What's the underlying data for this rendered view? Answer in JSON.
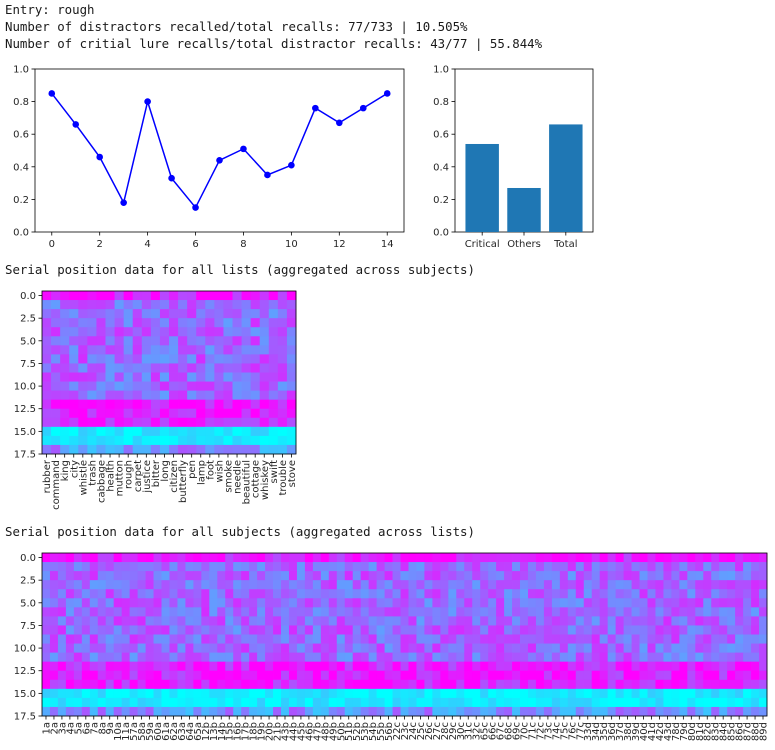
{
  "output": {
    "entry_line": "Entry: rough",
    "distractor_line": "Number of distractors recalled/total recalls: 77/733 | 10.505%",
    "lure_line": "Number of critial lure recalls/total distractor recalls: 43/77 | 55.844%",
    "lists_heading": "Serial position data for all lists (aggregated across subjects)",
    "subjects_heading": "Serial position data for all subjects (aggregated across lists)"
  },
  "colors": {
    "line": "#0000ff",
    "bar": "#1f77b4",
    "cmap_low": "#00ffff",
    "cmap_high": "#ff00ff"
  },
  "chart_data": [
    {
      "type": "line",
      "x": [
        0,
        1,
        2,
        3,
        4,
        5,
        6,
        7,
        8,
        9,
        10,
        11,
        12,
        13,
        14
      ],
      "y": [
        0.85,
        0.66,
        0.46,
        0.18,
        0.8,
        0.33,
        0.15,
        0.44,
        0.51,
        0.35,
        0.41,
        0.76,
        0.67,
        0.76,
        0.85
      ],
      "xlim": [
        -0.7,
        14.7
      ],
      "ylim": [
        0,
        1.0
      ],
      "xticks": [
        0,
        2,
        4,
        6,
        8,
        10,
        12,
        14
      ],
      "yticks": [
        0.0,
        0.2,
        0.4,
        0.6,
        0.8,
        1.0
      ],
      "marker": "circle"
    },
    {
      "type": "bar",
      "categories": [
        "Critical",
        "Others",
        "Total"
      ],
      "values": [
        0.54,
        0.27,
        0.66
      ],
      "ylim": [
        0,
        1.0
      ],
      "yticks": [
        0.0,
        0.2,
        0.4,
        0.6,
        0.8,
        1.0
      ]
    },
    {
      "type": "heatmap",
      "rows": 18,
      "yticks": [
        "0.0",
        "2.5",
        "5.0",
        "7.5",
        "10.0",
        "12.5",
        "15.0",
        "17.5"
      ],
      "columns": [
        "rubber",
        "command",
        "king",
        "city",
        "whistle",
        "trash",
        "cabbage",
        "health",
        "mutton",
        "rough",
        "carpet",
        "justice",
        "bitter",
        "long",
        "citizen",
        "butterfly",
        "pen",
        "lamp",
        "foot",
        "wish",
        "smoke",
        "needle",
        "beautiful",
        "cottage",
        "whiskey",
        "swift",
        "trouble",
        "stove"
      ],
      "colormap": "cool"
    },
    {
      "type": "heatmap",
      "rows": 18,
      "yticks": [
        "0.0",
        "2.5",
        "5.0",
        "7.5",
        "10.0",
        "12.5",
        "15.0",
        "17.5"
      ],
      "columns": [
        "1a",
        "2a",
        "3a",
        "4a",
        "5a",
        "6a",
        "7a",
        "8a",
        "9a",
        "10a",
        "11a",
        "57a",
        "58a",
        "59a",
        "60a",
        "61a",
        "62a",
        "63a",
        "64a",
        "65a",
        "12b",
        "13b",
        "14b",
        "15b",
        "16b",
        "17b",
        "18b",
        "19b",
        "20b",
        "21b",
        "43b",
        "44b",
        "45b",
        "46b",
        "47b",
        "48b",
        "49b",
        "50b",
        "51b",
        "52b",
        "53b",
        "54b",
        "55b",
        "56b",
        "22c",
        "23c",
        "24c",
        "25c",
        "26c",
        "27c",
        "28c",
        "29c",
        "30c",
        "31c",
        "32c",
        "65c",
        "66c",
        "67c",
        "68c",
        "69c",
        "70c",
        "71c",
        "72c",
        "73c",
        "74c",
        "75c",
        "76c",
        "77c",
        "33d",
        "34d",
        "35d",
        "36d",
        "37d",
        "38d",
        "39d",
        "40d",
        "41d",
        "42d",
        "43d",
        "78d",
        "79d",
        "80d",
        "81d",
        "82d",
        "83d",
        "84d",
        "85d",
        "86d",
        "87d",
        "88d",
        "89d"
      ],
      "colormap": "cool"
    }
  ]
}
